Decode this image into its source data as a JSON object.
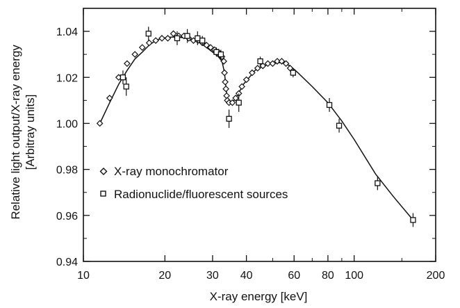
{
  "chart_data": {
    "type": "scatter",
    "title": "",
    "xlabel": "X-ray energy [keV]",
    "ylabel": "Relative light output/X-ray energy",
    "ylabel_units": "[Arbitray units]",
    "x_scale": "log",
    "xlim": [
      10,
      200
    ],
    "ylim": [
      0.94,
      1.05
    ],
    "x_ticks": [
      10,
      20,
      30,
      40,
      60,
      80,
      100,
      200
    ],
    "y_ticks": [
      0.94,
      0.96,
      0.98,
      1.0,
      1.02,
      1.04
    ],
    "y_tick_labels": [
      "0.94",
      "0.96",
      "0.98",
      "1.00",
      "1.02",
      "1.04"
    ],
    "grid": false,
    "legend_position": "lower-left",
    "series": [
      {
        "name": "X-ray monochromator",
        "marker": "diamond",
        "points": [
          [
            11.5,
            1.0
          ],
          [
            12.5,
            1.011
          ],
          [
            13.5,
            1.02
          ],
          [
            14.5,
            1.026
          ],
          [
            15.5,
            1.03
          ],
          [
            16.5,
            1.033
          ],
          [
            17.5,
            1.035
          ],
          [
            18.5,
            1.036
          ],
          [
            19.5,
            1.037
          ],
          [
            20.5,
            1.037
          ],
          [
            21.5,
            1.039
          ],
          [
            22.5,
            1.038
          ],
          [
            23.5,
            1.038
          ],
          [
            24.5,
            1.037
          ],
          [
            25.5,
            1.036
          ],
          [
            26.5,
            1.036
          ],
          [
            27.5,
            1.035
          ],
          [
            28.5,
            1.034
          ],
          [
            29.5,
            1.033
          ],
          [
            30.5,
            1.032
          ],
          [
            31.5,
            1.031
          ],
          [
            32.0,
            1.03
          ],
          [
            32.5,
            1.029
          ],
          [
            33.0,
            1.027
          ],
          [
            33.2,
            1.022
          ],
          [
            33.4,
            1.018
          ],
          [
            33.6,
            1.015
          ],
          [
            33.8,
            1.012
          ],
          [
            34.0,
            1.01
          ],
          [
            34.5,
            1.009
          ],
          [
            35.5,
            1.009
          ],
          [
            36.5,
            1.011
          ],
          [
            37.5,
            1.013
          ],
          [
            38.5,
            1.016
          ],
          [
            40.0,
            1.019
          ],
          [
            42.0,
            1.022
          ],
          [
            44.0,
            1.024
          ],
          [
            46.0,
            1.025
          ],
          [
            48.0,
            1.026
          ],
          [
            50.0,
            1.026
          ],
          [
            52.0,
            1.027
          ],
          [
            54.0,
            1.027
          ],
          [
            56.0,
            1.026
          ],
          [
            58.0,
            1.024
          ]
        ]
      },
      {
        "name": "Radionuclide/fluorescent sources",
        "marker": "square",
        "points": [
          [
            14.0,
            1.02,
            0.003
          ],
          [
            14.4,
            1.016,
            0.004
          ],
          [
            17.4,
            1.039,
            0.003
          ],
          [
            22.2,
            1.037,
            0.003
          ],
          [
            24.2,
            1.038,
            0.003
          ],
          [
            26.4,
            1.037,
            0.003
          ],
          [
            27.5,
            1.036,
            0.002
          ],
          [
            31.0,
            1.031,
            0.002
          ],
          [
            32.2,
            1.03,
            0.002
          ],
          [
            34.5,
            1.002,
            0.004
          ],
          [
            37.5,
            1.009,
            0.004
          ],
          [
            45.0,
            1.027,
            0.002
          ],
          [
            59.5,
            1.022,
            0.002
          ],
          [
            81.0,
            1.008,
            0.003
          ],
          [
            88.0,
            0.999,
            0.003
          ],
          [
            122.0,
            0.974,
            0.003
          ],
          [
            165.0,
            0.958,
            0.003
          ]
        ]
      }
    ],
    "fit_curve": [
      [
        11.5,
        1.0
      ],
      [
        12.5,
        1.009
      ],
      [
        13.5,
        1.017
      ],
      [
        14.5,
        1.023
      ],
      [
        15.5,
        1.028
      ],
      [
        16.5,
        1.031
      ],
      [
        17.5,
        1.034
      ],
      [
        18.5,
        1.036
      ],
      [
        19.5,
        1.037
      ],
      [
        21.0,
        1.0375
      ],
      [
        22.5,
        1.0375
      ],
      [
        24.0,
        1.037
      ],
      [
        25.5,
        1.036
      ],
      [
        27.0,
        1.035
      ],
      [
        28.5,
        1.033
      ],
      [
        30.0,
        1.031
      ],
      [
        31.5,
        1.029
      ],
      [
        32.5,
        1.027
      ],
      [
        33.2,
        1.022
      ],
      [
        33.6,
        1.016
      ],
      [
        34.0,
        1.011
      ],
      [
        34.5,
        1.009
      ],
      [
        35.5,
        1.009
      ],
      [
        37.0,
        1.012
      ],
      [
        39.0,
        1.017
      ],
      [
        41.0,
        1.02
      ],
      [
        43.0,
        1.023
      ],
      [
        46.0,
        1.025
      ],
      [
        50.0,
        1.026
      ],
      [
        54.0,
        1.0265
      ],
      [
        58.0,
        1.025
      ],
      [
        62.0,
        1.022
      ],
      [
        70.0,
        1.016
      ],
      [
        80.0,
        1.009
      ],
      [
        90.0,
        1.001
      ],
      [
        100.0,
        0.993
      ],
      [
        120.0,
        0.978
      ],
      [
        140.0,
        0.968
      ],
      [
        165.0,
        0.958
      ]
    ]
  }
}
